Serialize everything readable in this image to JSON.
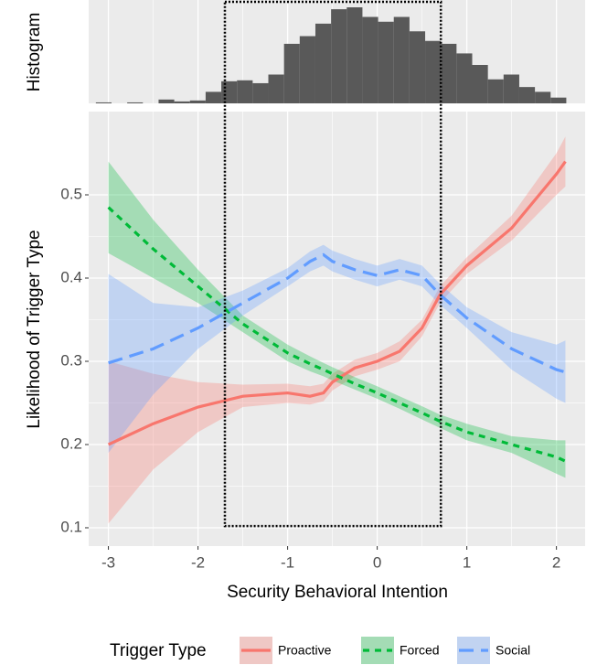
{
  "chart_data": {
    "type": "line",
    "xlabel": "Security Behavioral Intention",
    "ylabel": "Likelihood of Trigger Type",
    "xlim": [
      -3.22,
      2.32
    ],
    "ylim": [
      0.078,
      0.6
    ],
    "xticks": [
      -3,
      -2,
      -1,
      0,
      1,
      2
    ],
    "yticks": [
      0.1,
      0.2,
      0.3,
      0.4,
      0.5
    ],
    "grid": true,
    "legend_title": "Trigger Type",
    "legend": "bottom",
    "x": [
      -3,
      -2.5,
      -2,
      -1.5,
      -1,
      -0.75,
      -0.6,
      -0.5,
      -0.25,
      0,
      0.25,
      0.5,
      0.7,
      1,
      1.5,
      2,
      2.1
    ],
    "series": [
      {
        "name": "Proactive",
        "color": "#F8766D",
        "dash": "solid",
        "values": [
          0.2,
          0.225,
          0.245,
          0.258,
          0.262,
          0.258,
          0.262,
          0.275,
          0.292,
          0.3,
          0.312,
          0.34,
          0.38,
          0.415,
          0.46,
          0.525,
          0.54
        ],
        "lower": [
          0.105,
          0.17,
          0.215,
          0.245,
          0.25,
          0.248,
          0.252,
          0.265,
          0.282,
          0.29,
          0.3,
          0.33,
          0.37,
          0.405,
          0.445,
          0.5,
          0.51
        ],
        "upper": [
          0.3,
          0.285,
          0.275,
          0.272,
          0.273,
          0.27,
          0.273,
          0.285,
          0.302,
          0.31,
          0.324,
          0.35,
          0.39,
          0.425,
          0.475,
          0.55,
          0.57
        ]
      },
      {
        "name": "Forced",
        "color": "#00BA38",
        "dash": "short",
        "values": [
          0.485,
          0.435,
          0.39,
          0.345,
          0.31,
          0.297,
          0.29,
          0.285,
          0.273,
          0.262,
          0.25,
          0.238,
          0.228,
          0.215,
          0.2,
          0.185,
          0.18
        ],
        "lower": [
          0.43,
          0.4,
          0.37,
          0.335,
          0.3,
          0.288,
          0.282,
          0.277,
          0.266,
          0.255,
          0.243,
          0.23,
          0.22,
          0.205,
          0.19,
          0.165,
          0.16
        ],
        "upper": [
          0.54,
          0.47,
          0.41,
          0.355,
          0.32,
          0.306,
          0.298,
          0.293,
          0.281,
          0.27,
          0.258,
          0.246,
          0.236,
          0.225,
          0.21,
          0.205,
          0.205
        ]
      },
      {
        "name": "Social",
        "color": "#619CFF",
        "dash": "long",
        "values": [
          0.298,
          0.315,
          0.34,
          0.37,
          0.4,
          0.42,
          0.428,
          0.42,
          0.41,
          0.403,
          0.41,
          0.403,
          0.38,
          0.352,
          0.315,
          0.29,
          0.287
        ],
        "lower": [
          0.19,
          0.26,
          0.315,
          0.355,
          0.39,
          0.408,
          0.415,
          0.408,
          0.398,
          0.39,
          0.398,
          0.39,
          0.368,
          0.34,
          0.29,
          0.255,
          0.25
        ],
        "upper": [
          0.405,
          0.37,
          0.365,
          0.385,
          0.412,
          0.432,
          0.44,
          0.433,
          0.423,
          0.415,
          0.423,
          0.415,
          0.393,
          0.365,
          0.335,
          0.32,
          0.325
        ]
      }
    ],
    "histogram": {
      "ylabel": "Histogram",
      "color": "#595959",
      "bins": [
        -3.14,
        -2.965,
        -2.79,
        -2.615,
        -2.44,
        -2.265,
        -2.09,
        -1.915,
        -1.74,
        -1.565,
        -1.39,
        -1.215,
        -1.04,
        -0.865,
        -0.69,
        -0.515,
        -0.34,
        -0.165,
        0.01,
        0.185,
        0.36,
        0.535,
        0.71,
        0.885,
        1.06,
        1.235,
        1.41,
        1.585,
        1.76,
        1.935,
        2.11
      ],
      "counts": [
        1,
        0,
        1,
        0,
        4,
        2,
        3,
        12,
        23,
        24,
        21,
        30,
        62,
        70,
        83,
        98,
        100,
        90,
        85,
        90,
        75,
        65,
        62,
        52,
        40,
        25,
        30,
        17,
        12,
        6
      ]
    },
    "highlight": {
      "x": [
        -1.7,
        0.71
      ],
      "ybottom": 0.102
    }
  }
}
